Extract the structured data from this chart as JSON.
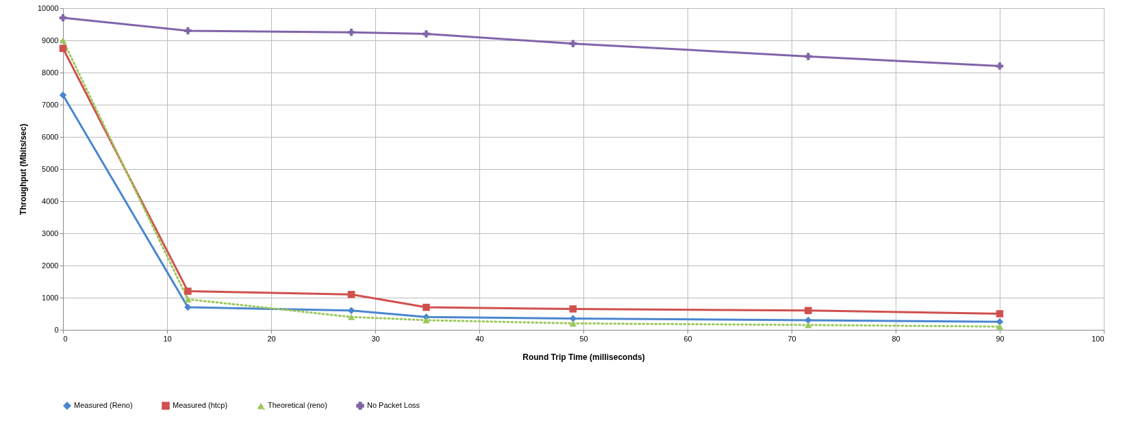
{
  "chart_data": {
    "type": "line",
    "xlabel": "Round Trip Time (milliseconds)",
    "ylabel": "Throughput (Mbits/sec)",
    "x": [
      0,
      12,
      27.7,
      34.9,
      49,
      71.6,
      90
    ],
    "xlim": [
      0,
      100
    ],
    "xticks": [
      0,
      10,
      20,
      30,
      40,
      50,
      60,
      70,
      80,
      90,
      100
    ],
    "ylim": [
      0,
      10000
    ],
    "yticks": [
      0,
      1000,
      2000,
      3000,
      4000,
      5000,
      6000,
      7000,
      8000,
      9000,
      10000
    ],
    "grid": true,
    "legend": "bottom",
    "series": [
      {
        "name": "Measured (Reno)",
        "color": "#4a86d0",
        "marker": "diamond",
        "line_style": "solid",
        "values": [
          7300,
          700,
          600,
          400,
          350,
          300,
          250
        ]
      },
      {
        "name": "Measured (htcp)",
        "color": "#d0504d",
        "marker": "square",
        "line_style": "solid",
        "values": [
          8750,
          1200,
          1100,
          700,
          650,
          600,
          500
        ]
      },
      {
        "name": "Theoretical (reno)",
        "color": "#9bc85a",
        "marker": "triangle",
        "line_style": "dotted",
        "values": [
          9000,
          950,
          400,
          300,
          200,
          150,
          100
        ]
      },
      {
        "name": "No Packet Loss",
        "color": "#8064a8",
        "marker": "cross",
        "line_style": "solid",
        "values": [
          9700,
          9300,
          9250,
          9200,
          8900,
          8500,
          8200
        ]
      }
    ]
  }
}
